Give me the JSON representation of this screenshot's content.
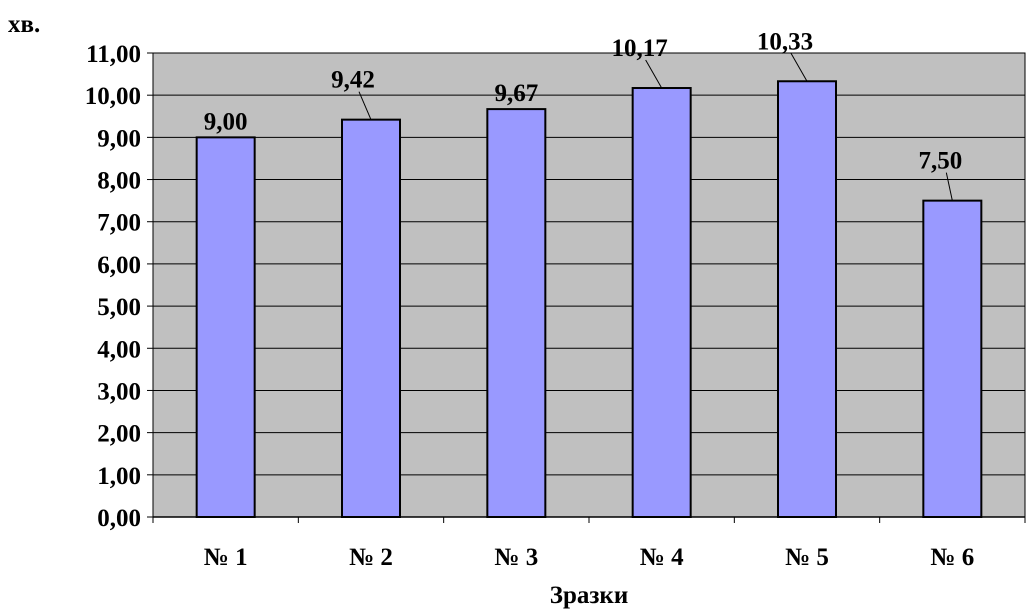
{
  "chart_data": {
    "type": "bar",
    "ylabel": "хв.",
    "xlabel": "Зразки",
    "categories": [
      "№ 1",
      "№ 2",
      "№ 3",
      "№ 4",
      "№ 5",
      "№ 6"
    ],
    "values": [
      9.0,
      9.42,
      9.67,
      10.17,
      10.33,
      7.5
    ],
    "value_labels": [
      "9,00",
      "9,42",
      "9,67",
      "10,17",
      "10,33",
      "7,50"
    ],
    "ylim": [
      0,
      11
    ],
    "y_ticks": [
      0,
      1,
      2,
      3,
      4,
      5,
      6,
      7,
      8,
      9,
      10,
      11
    ],
    "y_tick_labels": [
      "0,00",
      "1,00",
      "2,00",
      "3,00",
      "4,00",
      "5,00",
      "6,00",
      "7,00",
      "8,00",
      "9,00",
      "10,00",
      "11,00"
    ],
    "grid": true,
    "legend": "none",
    "colors": {
      "bar": "#9999ff",
      "plot_background": "#c0c0c0",
      "bar_edge": "#000000",
      "grid": "#000000"
    }
  }
}
